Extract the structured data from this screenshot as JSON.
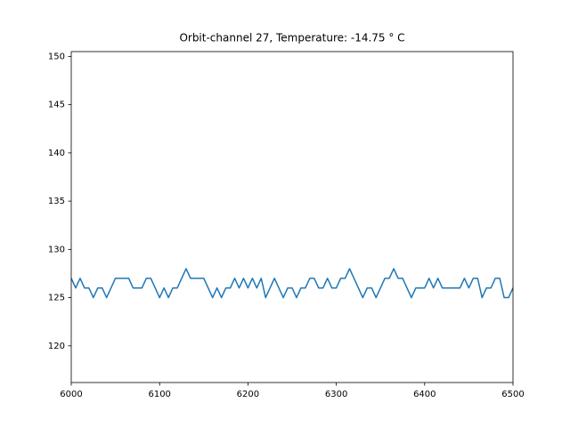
{
  "chart_data": {
    "type": "line",
    "title": "Orbit-channel 27, Temperature: -14.75 ° C",
    "x": [
      6000,
      6005,
      6010,
      6015,
      6020,
      6025,
      6030,
      6035,
      6040,
      6045,
      6050,
      6055,
      6060,
      6065,
      6070,
      6075,
      6080,
      6085,
      6090,
      6095,
      6100,
      6105,
      6110,
      6115,
      6120,
      6125,
      6130,
      6135,
      6140,
      6145,
      6150,
      6155,
      6160,
      6165,
      6170,
      6175,
      6180,
      6185,
      6190,
      6195,
      6200,
      6205,
      6210,
      6215,
      6220,
      6225,
      6230,
      6235,
      6240,
      6245,
      6250,
      6255,
      6260,
      6265,
      6270,
      6275,
      6280,
      6285,
      6290,
      6295,
      6300,
      6305,
      6310,
      6315,
      6320,
      6325,
      6330,
      6335,
      6340,
      6345,
      6350,
      6355,
      6360,
      6365,
      6370,
      6375,
      6380,
      6385,
      6390,
      6395,
      6400,
      6405,
      6410,
      6415,
      6420,
      6425,
      6430,
      6435,
      6440,
      6445,
      6450,
      6455,
      6460,
      6465,
      6470,
      6475,
      6480,
      6485,
      6490,
      6495,
      6500
    ],
    "series": [
      {
        "color": "#1f77b4",
        "values": [
          127,
          126,
          127,
          126,
          126,
          125,
          126,
          126,
          125,
          126,
          127,
          127,
          127,
          127,
          126,
          126,
          126,
          127,
          127,
          126,
          125,
          126,
          125,
          126,
          126,
          127,
          128,
          127,
          127,
          127,
          127,
          126,
          125,
          126,
          125,
          126,
          126,
          127,
          126,
          127,
          126,
          127,
          126,
          127,
          125,
          126,
          127,
          126,
          125,
          126,
          126,
          125,
          126,
          126,
          127,
          127,
          126,
          126,
          127,
          126,
          126,
          127,
          127,
          128,
          127,
          126,
          125,
          126,
          126,
          125,
          126,
          127,
          127,
          128,
          127,
          127,
          126,
          125,
          126,
          126,
          126,
          127,
          126,
          127,
          126,
          126,
          126,
          126,
          126,
          127,
          126,
          127,
          127,
          125,
          126,
          126,
          127,
          127,
          125,
          125,
          126
        ]
      }
    ],
    "xlim": [
      6000,
      6500
    ],
    "ylim": [
      116.2,
      150.5
    ],
    "xticks": [
      6000,
      6100,
      6200,
      6300,
      6400,
      6500
    ],
    "yticks": [
      120,
      125,
      130,
      135,
      140,
      145,
      150
    ],
    "grid": false
  }
}
